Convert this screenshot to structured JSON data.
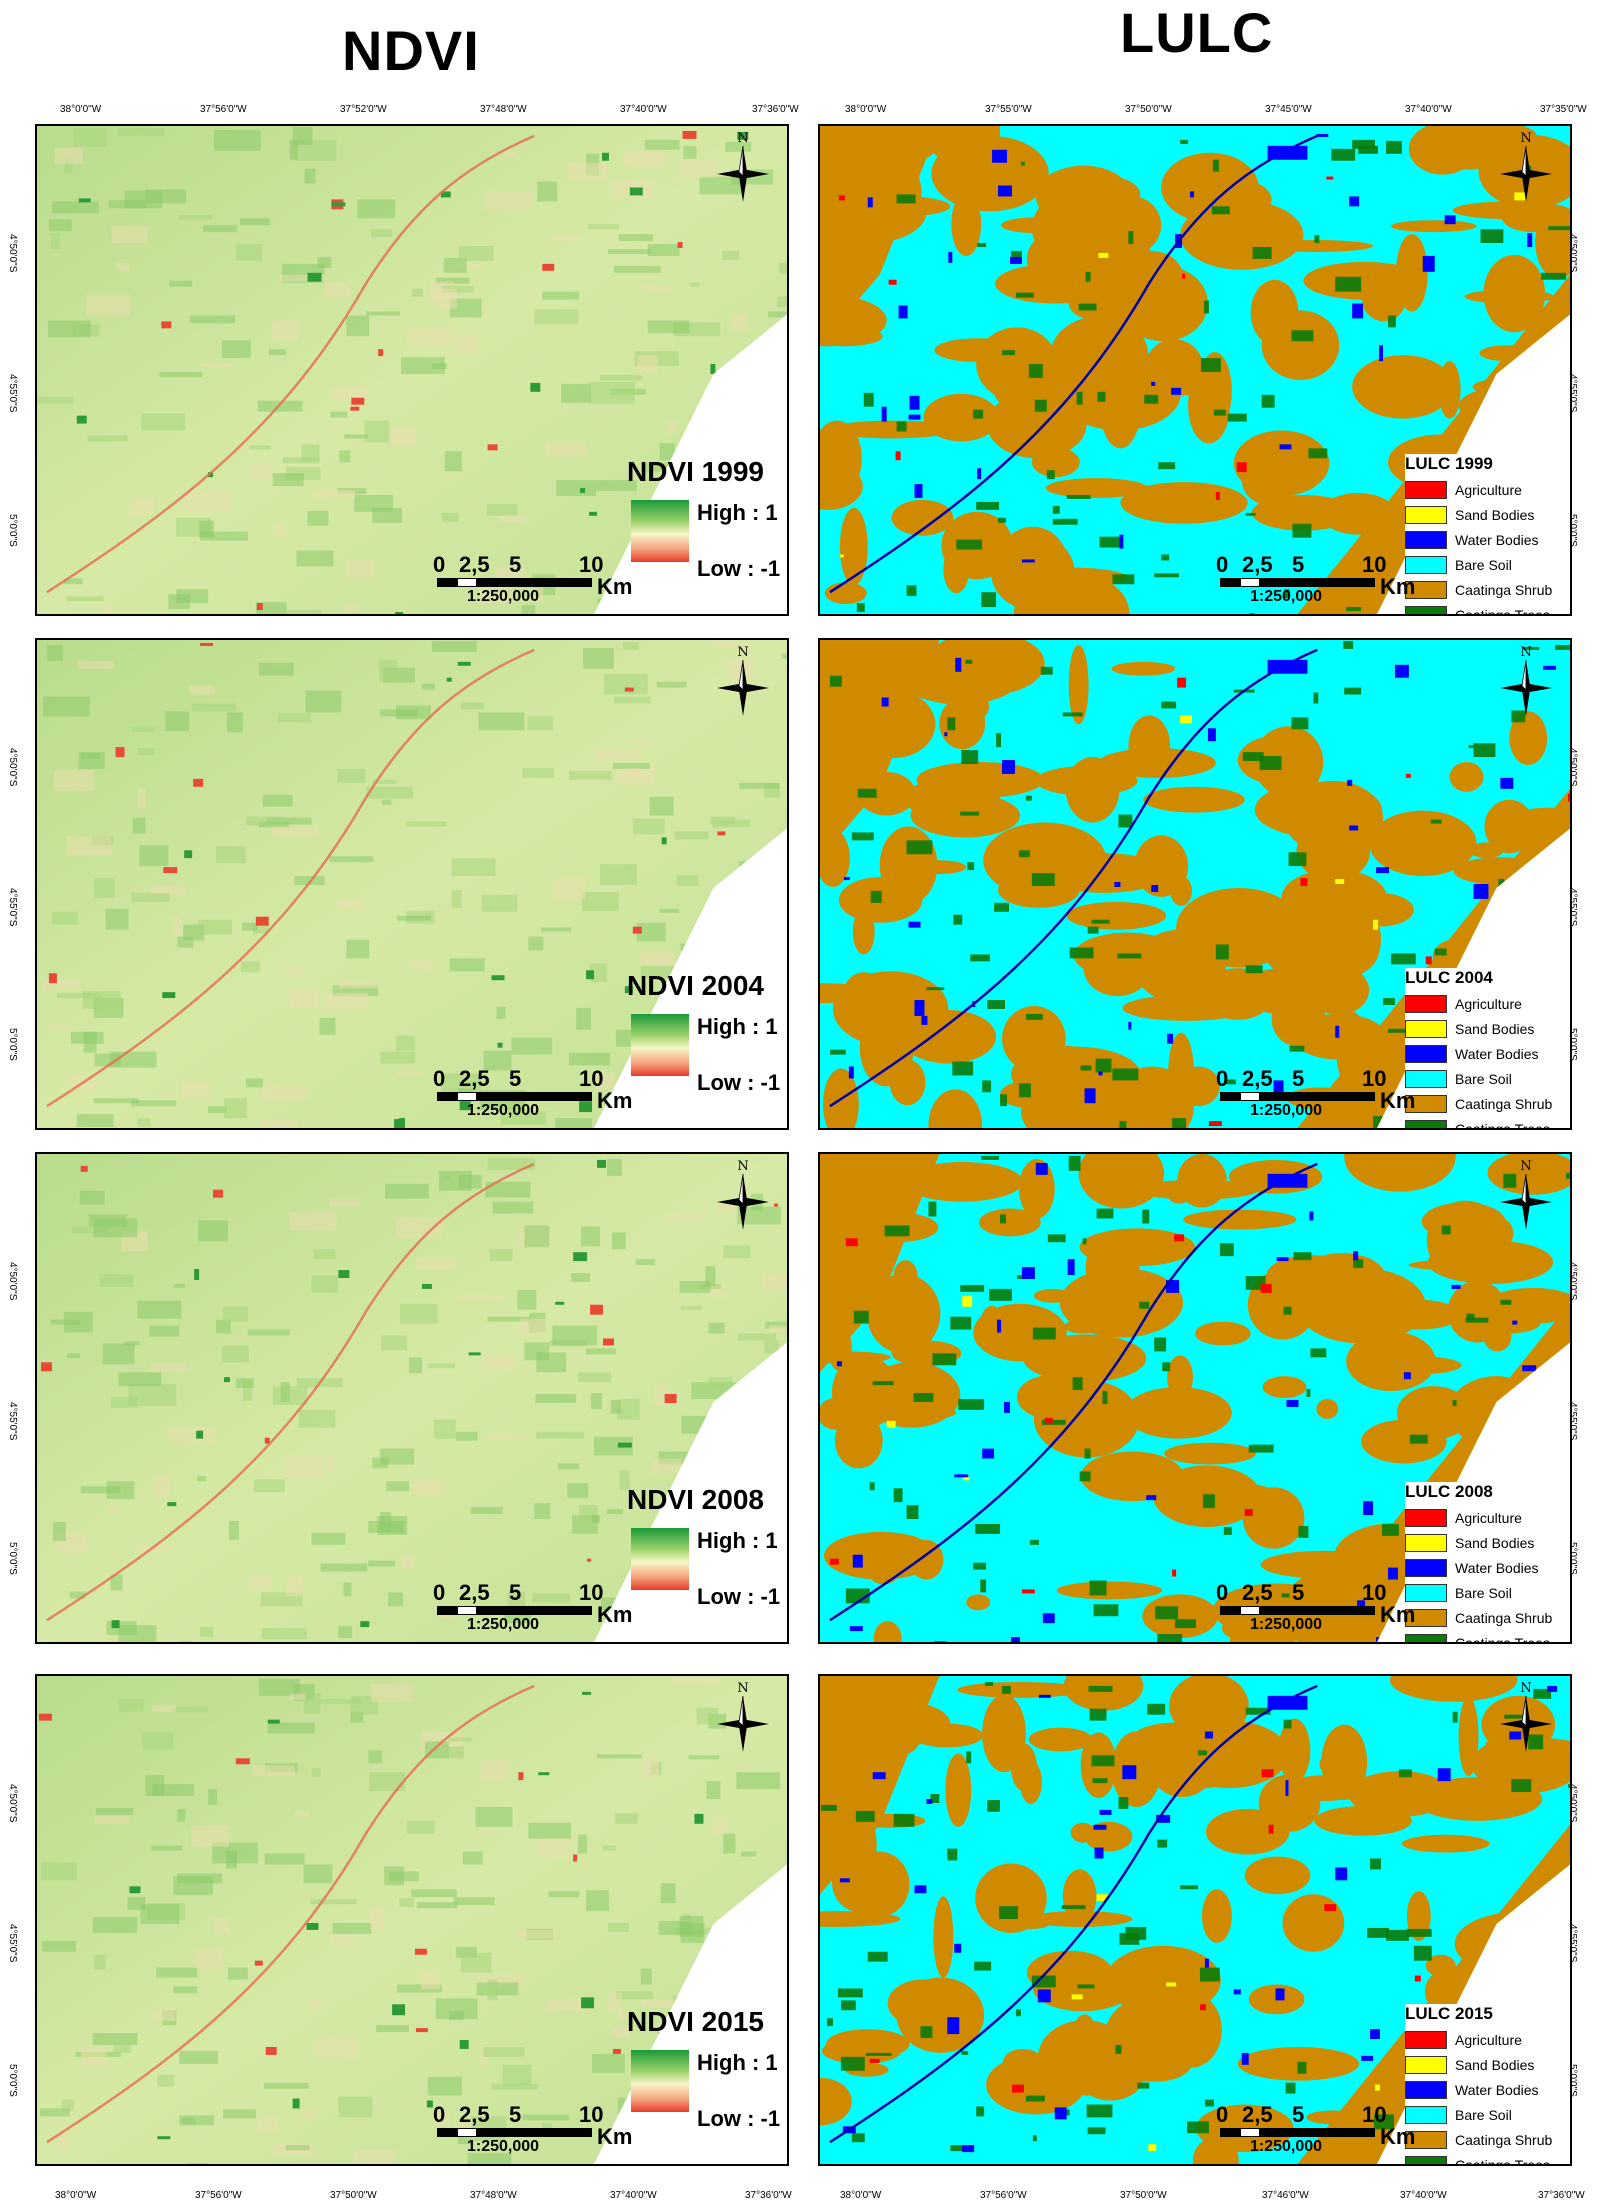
{
  "titles": {
    "ndvi": "NDVI",
    "lulc": "LULC"
  },
  "coords": {
    "left_top": [
      "38°0'0\"W",
      "37°56'0\"W",
      "37°52'0\"W",
      "37°48'0\"W",
      "37°40'0\"W",
      "37°36'0\"W"
    ],
    "right_top": [
      "38°0'0\"W",
      "37°55'0\"W",
      "37°50'0\"W",
      "37°45'0\"W",
      "37°40'0\"W",
      "37°35'0\"W"
    ],
    "left_bottom": [
      "38°0'0\"W",
      "37°56'0\"W",
      "37°50'0\"W",
      "37°48'0\"W",
      "37°40'0\"W",
      "37°36'0\"W"
    ],
    "right_bottom": [
      "38°0'0\"W",
      "37°56'0\"W",
      "37°50'0\"W",
      "37°46'0\"W",
      "37°40'0\"W",
      "37°36'0\"W"
    ],
    "lat": [
      "4°50'0\"S",
      "4°55'0\"S",
      "5°0'0\"S"
    ]
  },
  "ndvi_panels": [
    {
      "title": "NDVI 1999"
    },
    {
      "title": "NDVI 2004"
    },
    {
      "title": "NDVI 2008"
    },
    {
      "title": "NDVI 2015"
    }
  ],
  "lulc_panels": [
    {
      "title": "LULC 1999"
    },
    {
      "title": "LULC 2004"
    },
    {
      "title": "LULC 2008"
    },
    {
      "title": "LULC 2015"
    }
  ],
  "ndvi_legend": {
    "high": "High : 1",
    "low": "Low : -1"
  },
  "scale": {
    "n0": "0",
    "n1": "2,5",
    "n2": "5",
    "n3": "10",
    "unit": "Km",
    "ratio": "1:250,000"
  },
  "north": "N",
  "classes": [
    {
      "label": "Agriculture",
      "color": "#ff0000"
    },
    {
      "label": "Sand Bodies",
      "color": "#ffff00"
    },
    {
      "label": "Water Bodies",
      "color": "#0000ff"
    },
    {
      "label": "Bare Soil",
      "color": "#00ffff"
    },
    {
      "label": "Caatinga Shrub",
      "color": "#d08a00"
    },
    {
      "label": "Caatinga Trees",
      "color": "#0a7a0a"
    }
  ]
}
